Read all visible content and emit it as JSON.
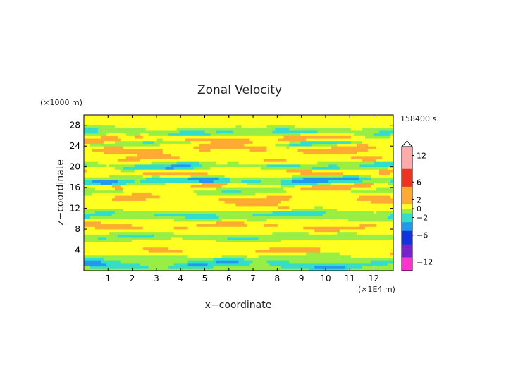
{
  "chart_data": {
    "type": "heatmap",
    "title": "Zonal Velocity",
    "xlabel": "x−coordinate",
    "ylabel": "z−coordinate",
    "x_unit": "(×1E4 m)",
    "y_unit": "(×1000 m)",
    "time_label": "158400 s",
    "xlim": [
      0,
      12.8
    ],
    "ylim": [
      0,
      30
    ],
    "x_ticks": [
      1,
      2,
      3,
      4,
      5,
      6,
      7,
      8,
      9,
      10,
      11,
      12
    ],
    "y_ticks": [
      4,
      8,
      12,
      16,
      20,
      24,
      28
    ],
    "colorbar": {
      "levels": [
        -14,
        -13,
        -12,
        -11,
        -10,
        -9,
        -8,
        -7,
        -6,
        -5,
        -4,
        -3,
        -2,
        -1,
        0,
        1,
        2,
        3,
        4,
        5,
        6,
        7,
        8,
        9,
        10,
        11,
        12,
        13,
        14
      ],
      "tick_labels": [
        "12",
        "6",
        "2",
        "0",
        "−2",
        "−6",
        "−12"
      ],
      "tick_values": [
        12,
        6,
        2,
        0,
        -2,
        -6,
        -12
      ],
      "extend": "max"
    },
    "colors": {
      "neg_extreme": "#ff33cc",
      "neg_strong": "#7722cc",
      "neg_mid": "#1133dd",
      "neg_weak": "#2299ee",
      "neg_small": "#33ddcc",
      "near_zero_neg": "#99ee44",
      "near_zero_pos": "#ffff22",
      "pos_small": "#ffaa33",
      "pos_mid": "#ee3322",
      "pos_strong": "#ffaaaa"
    },
    "bands": [
      {
        "z": 1.2,
        "w": 0.7,
        "amp": -3.0
      },
      {
        "z": 2.6,
        "w": 0.9,
        "amp": -0.8
      },
      {
        "z": 3.6,
        "w": 0.6,
        "amp": 2.6
      },
      {
        "z": 5.2,
        "w": 0.9,
        "amp": 0.9
      },
      {
        "z": 6.6,
        "w": 0.7,
        "amp": -1.6
      },
      {
        "z": 7.8,
        "w": 0.9,
        "amp": 1.2
      },
      {
        "z": 8.6,
        "w": 0.5,
        "amp": 2.4
      },
      {
        "z": 9.8,
        "w": 0.8,
        "amp": 0.4
      },
      {
        "z": 10.8,
        "w": 0.8,
        "amp": -2.2
      },
      {
        "z": 12.0,
        "w": 0.6,
        "amp": 1.2
      },
      {
        "z": 12.9,
        "w": 0.7,
        "amp": 0.6
      },
      {
        "z": 14.0,
        "w": 0.8,
        "amp": 2.8
      },
      {
        "z": 15.2,
        "w": 0.7,
        "amp": -1.2
      },
      {
        "z": 16.3,
        "w": 0.6,
        "amp": 3.4
      },
      {
        "z": 17.3,
        "w": 0.7,
        "amp": -4.2
      },
      {
        "z": 18.6,
        "w": 0.6,
        "amp": 1.0
      },
      {
        "z": 19.2,
        "w": 0.5,
        "amp": 3.0
      },
      {
        "z": 20.1,
        "w": 0.7,
        "amp": -3.0
      },
      {
        "z": 21.3,
        "w": 0.7,
        "amp": 2.0
      },
      {
        "z": 22.4,
        "w": 0.7,
        "amp": 0.6
      },
      {
        "z": 23.6,
        "w": 0.8,
        "amp": 3.2
      },
      {
        "z": 24.6,
        "w": 0.6,
        "amp": -2.6
      },
      {
        "z": 25.3,
        "w": 0.6,
        "amp": 4.2
      },
      {
        "z": 26.6,
        "w": 0.7,
        "amp": -2.0
      },
      {
        "z": 27.8,
        "w": 0.8,
        "amp": 0.4
      },
      {
        "z": 29.3,
        "w": 0.8,
        "amp": 0.8
      }
    ]
  }
}
